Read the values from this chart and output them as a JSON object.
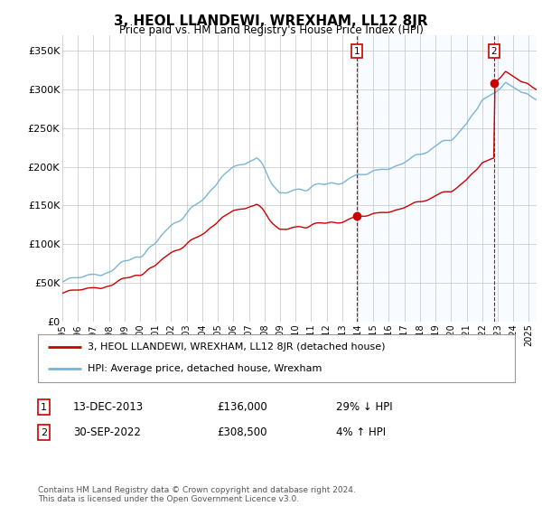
{
  "title": "3, HEOL LLANDEWI, WREXHAM, LL12 8JR",
  "subtitle": "Price paid vs. HM Land Registry's House Price Index (HPI)",
  "legend_line1": "3, HEOL LLANDEWI, WREXHAM, LL12 8JR (detached house)",
  "legend_line2": "HPI: Average price, detached house, Wrexham",
  "annotation1_label": "1",
  "annotation1_date": "13-DEC-2013",
  "annotation1_price": "£136,000",
  "annotation1_hpi": "29% ↓ HPI",
  "annotation1_year": 2013.95,
  "annotation1_value": 136000,
  "annotation2_label": "2",
  "annotation2_date": "30-SEP-2022",
  "annotation2_price": "£308,500",
  "annotation2_hpi": "4% ↑ HPI",
  "annotation2_year": 2022.75,
  "annotation2_value": 308500,
  "footer": "Contains HM Land Registry data © Crown copyright and database right 2024.\nThis data is licensed under the Open Government Licence v3.0.",
  "hpi_color": "#7ab4d8",
  "price_color": "#cc0000",
  "shade_color": "#ddeeff",
  "ylim_min": 0,
  "ylim_max": 370000,
  "background_color": "#ffffff",
  "plot_bg_color": "#ffffff",
  "grid_color": "#cccccc"
}
